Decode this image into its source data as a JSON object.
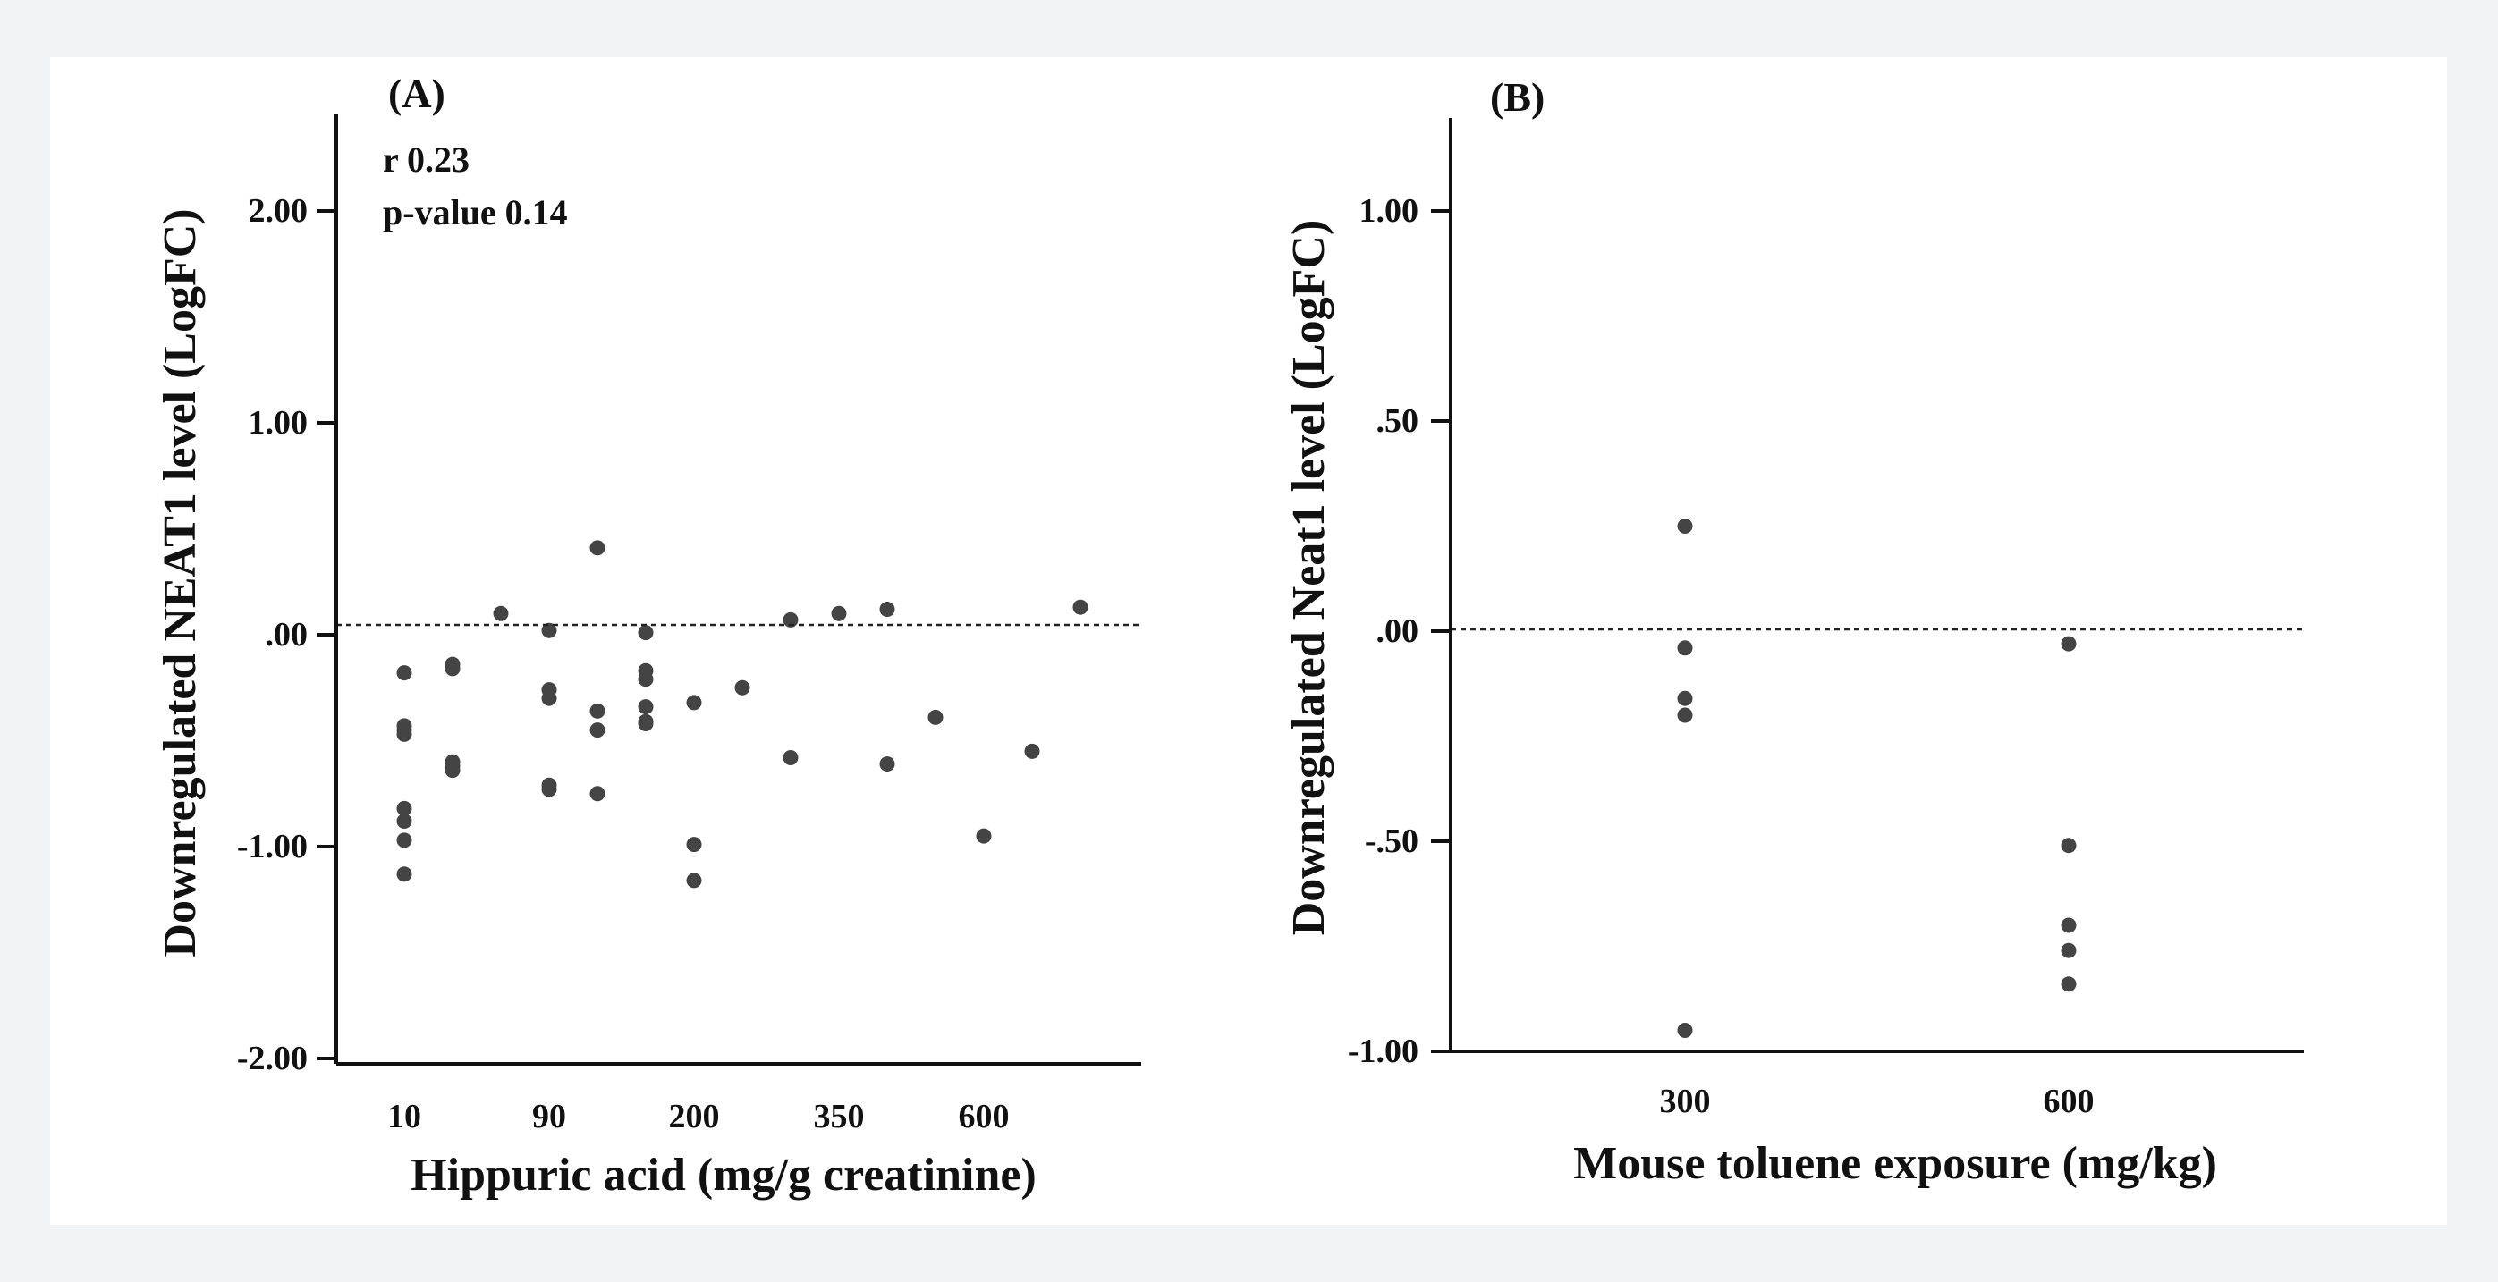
{
  "colors": {
    "page_background": "#f0f4f6",
    "panel_background": "#ffffff",
    "point": "#444444",
    "axis": "#111111"
  },
  "chart_data": [
    {
      "type": "scatter",
      "panel_label": "(A)",
      "xlabel": "Hippuric acid (mg/g creatinine)",
      "ylabel": "Downregulated NEAT1 level (LogFC)",
      "x_ticks": [
        "10",
        "90",
        "200",
        "350",
        "600"
      ],
      "y_ticks": [
        "2.00",
        "1.00",
        ".00",
        "-1.00",
        "-2.00"
      ],
      "ylim": [
        -2.0,
        2.5
      ],
      "reference_line_y": 0.0,
      "annotations": [
        "r  0.23",
        "p-value 0.14"
      ],
      "points": [
        {
          "x": 10,
          "y": -0.18
        },
        {
          "x": 10,
          "y": -0.43
        },
        {
          "x": 10,
          "y": -0.45
        },
        {
          "x": 10,
          "y": -0.47
        },
        {
          "x": 10,
          "y": -0.82
        },
        {
          "x": 10,
          "y": -0.88
        },
        {
          "x": 10,
          "y": -0.97
        },
        {
          "x": 10,
          "y": -1.13
        },
        {
          "x": 40,
          "y": -0.14
        },
        {
          "x": 40,
          "y": -0.16
        },
        {
          "x": 40,
          "y": -0.6
        },
        {
          "x": 40,
          "y": -0.62
        },
        {
          "x": 40,
          "y": -0.64
        },
        {
          "x": 60,
          "y": 0.1
        },
        {
          "x": 90,
          "y": 0.02
        },
        {
          "x": 90,
          "y": -0.26
        },
        {
          "x": 90,
          "y": -0.3
        },
        {
          "x": 90,
          "y": -0.71
        },
        {
          "x": 90,
          "y": -0.73
        },
        {
          "x": 120,
          "y": 0.41
        },
        {
          "x": 120,
          "y": -0.36
        },
        {
          "x": 120,
          "y": -0.45
        },
        {
          "x": 120,
          "y": -0.75
        },
        {
          "x": 150,
          "y": 0.01
        },
        {
          "x": 150,
          "y": -0.17
        },
        {
          "x": 150,
          "y": -0.21
        },
        {
          "x": 150,
          "y": -0.34
        },
        {
          "x": 150,
          "y": -0.41
        },
        {
          "x": 150,
          "y": -0.42
        },
        {
          "x": 200,
          "y": -0.32
        },
        {
          "x": 200,
          "y": -0.99
        },
        {
          "x": 200,
          "y": -1.16
        },
        {
          "x": 250,
          "y": -0.25
        },
        {
          "x": 300,
          "y": 0.07
        },
        {
          "x": 300,
          "y": -0.58
        },
        {
          "x": 350,
          "y": 0.1
        },
        {
          "x": 400,
          "y": 0.12
        },
        {
          "x": 400,
          "y": -0.61
        },
        {
          "x": 500,
          "y": -0.39
        },
        {
          "x": 600,
          "y": -0.95
        },
        {
          "x": 700,
          "y": -0.55
        },
        {
          "x": 900,
          "y": 0.13
        }
      ]
    },
    {
      "type": "scatter",
      "panel_label": "(B)",
      "xlabel": "Mouse toluene exposure (mg/kg)",
      "ylabel": "Downregulated Neat1 level (LogFC)",
      "x_ticks": [
        "300",
        "600"
      ],
      "y_ticks": [
        "1.00",
        ".50",
        ".00",
        "-.50",
        "-1.00"
      ],
      "ylim": [
        -1.0,
        1.2
      ],
      "reference_line_y": 0.0,
      "points": [
        {
          "x": 300,
          "y": 0.25
        },
        {
          "x": 300,
          "y": -0.04
        },
        {
          "x": 300,
          "y": -0.16
        },
        {
          "x": 300,
          "y": -0.2
        },
        {
          "x": 300,
          "y": -0.95
        },
        {
          "x": 600,
          "y": -0.03
        },
        {
          "x": 600,
          "y": -0.51
        },
        {
          "x": 600,
          "y": -0.7
        },
        {
          "x": 600,
          "y": -0.76
        },
        {
          "x": 600,
          "y": -0.84
        }
      ]
    }
  ]
}
